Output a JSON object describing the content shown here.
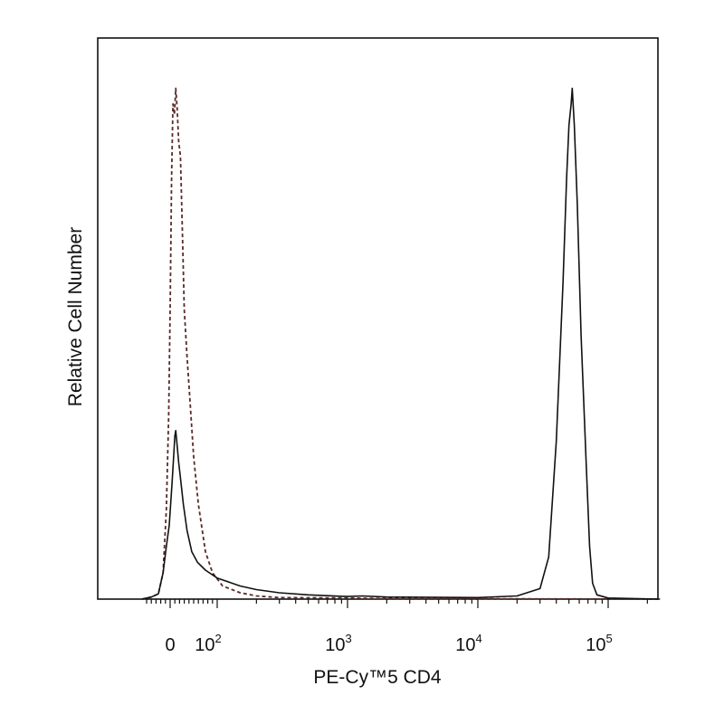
{
  "chart_data": {
    "type": "line",
    "title": "",
    "xlabel": "PE-Cy™5 CD4",
    "ylabel": "Relative Cell Number",
    "x_scale": "biexponential (linear near 0, log above ~10^2)",
    "xlim": [
      -60,
      250000
    ],
    "ylim": [
      0,
      1.0
    ],
    "grid": false,
    "legend": "none",
    "x_tick_labels": [
      {
        "base": "0",
        "exp": "",
        "value": 0
      },
      {
        "base": "10",
        "exp": "2",
        "value": 100
      },
      {
        "base": "10",
        "exp": "3",
        "value": 1000
      },
      {
        "base": "10",
        "exp": "4",
        "value": 10000
      },
      {
        "base": "10",
        "exp": "5",
        "value": 100000
      }
    ],
    "series": [
      {
        "style": "dashed",
        "color": "#5a2a2a",
        "points": [
          [
            -60,
            0.0
          ],
          [
            -40,
            0.004
          ],
          [
            -25,
            0.01
          ],
          [
            -15,
            0.05
          ],
          [
            -8,
            0.17
          ],
          [
            -3,
            0.35
          ],
          [
            0,
            0.55
          ],
          [
            3,
            0.8
          ],
          [
            6,
            0.94
          ],
          [
            9,
            0.92
          ],
          [
            12,
            0.97
          ],
          [
            15,
            0.93
          ],
          [
            18,
            0.87
          ],
          [
            22,
            0.84
          ],
          [
            26,
            0.7
          ],
          [
            30,
            0.55
          ],
          [
            36,
            0.46
          ],
          [
            42,
            0.38
          ],
          [
            50,
            0.27
          ],
          [
            60,
            0.18
          ],
          [
            75,
            0.09
          ],
          [
            90,
            0.05
          ],
          [
            110,
            0.025
          ],
          [
            150,
            0.012
          ],
          [
            200,
            0.006
          ],
          [
            300,
            0.003
          ],
          [
            1000,
            0.002
          ],
          [
            2000,
            0.001
          ],
          [
            250000,
            0.0
          ]
        ]
      },
      {
        "style": "solid",
        "color": "#111111",
        "points": [
          [
            -60,
            0.0
          ],
          [
            -40,
            0.004
          ],
          [
            -25,
            0.01
          ],
          [
            -15,
            0.05
          ],
          [
            -8,
            0.1
          ],
          [
            -2,
            0.14
          ],
          [
            4,
            0.22
          ],
          [
            8,
            0.28
          ],
          [
            10,
            0.31
          ],
          [
            12,
            0.32
          ],
          [
            14,
            0.3
          ],
          [
            18,
            0.26
          ],
          [
            22,
            0.23
          ],
          [
            28,
            0.18
          ],
          [
            36,
            0.13
          ],
          [
            46,
            0.09
          ],
          [
            58,
            0.07
          ],
          [
            75,
            0.055
          ],
          [
            100,
            0.04
          ],
          [
            150,
            0.025
          ],
          [
            200,
            0.018
          ],
          [
            300,
            0.012
          ],
          [
            500,
            0.008
          ],
          [
            1000,
            0.005
          ],
          [
            1300,
            0.006
          ],
          [
            2000,
            0.004
          ],
          [
            10000,
            0.003
          ],
          [
            20000,
            0.006
          ],
          [
            30000,
            0.02
          ],
          [
            35000,
            0.08
          ],
          [
            40000,
            0.3
          ],
          [
            45000,
            0.6
          ],
          [
            48000,
            0.8
          ],
          [
            50000,
            0.9
          ],
          [
            52000,
            0.94
          ],
          [
            53000,
            0.97
          ],
          [
            55000,
            0.9
          ],
          [
            58000,
            0.75
          ],
          [
            62000,
            0.5
          ],
          [
            68000,
            0.25
          ],
          [
            72000,
            0.1
          ],
          [
            76000,
            0.03
          ],
          [
            82000,
            0.008
          ],
          [
            100000,
            0.002
          ],
          [
            250000,
            0.0
          ]
        ]
      }
    ]
  }
}
